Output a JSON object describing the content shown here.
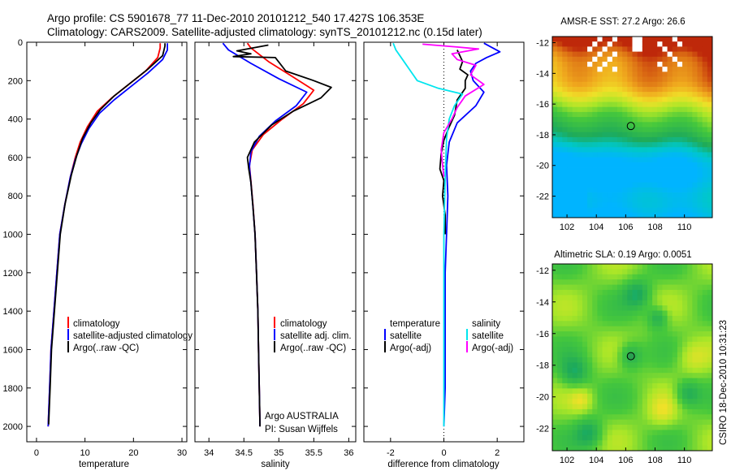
{
  "header": {
    "title_line1": "Argo profile: CS 5901678_77 11-Dec-2010 20101212_540 17.427S 106.353E",
    "title_line2": "Climatology: CARS2009. Satellite-adjusted climatology: synTS_20101212.nc (0.15d later)"
  },
  "stamp": "CSIRO 18-Dec-2010 10:31:23",
  "colors": {
    "climatology": "#ff0000",
    "satellite": "#0000ff",
    "argo": "#000000",
    "sal_satellite": "#00e5ee",
    "sal_argo": "#ff00ff"
  },
  "chart_data": [
    {
      "type": "line",
      "panel": "temperature",
      "xlabel": "temperature",
      "xlim": [
        -2,
        31
      ],
      "ylim": [
        0,
        2080
      ],
      "y_inverted": true,
      "xticks": [
        "0",
        "10",
        "20",
        "30"
      ],
      "yticks": [
        "0",
        "200",
        "400",
        "600",
        "800",
        "1000",
        "1200",
        "1400",
        "1600",
        "1800",
        "2000"
      ],
      "legend": [
        "climatology",
        "satellite-adjusted climatology",
        "Argo(..raw -QC)"
      ],
      "series": [
        {
          "name": "climatology",
          "color": "#ff0000",
          "points": [
            [
              25.5,
              5
            ],
            [
              25.5,
              30
            ],
            [
              25.0,
              80
            ],
            [
              22.5,
              150
            ],
            [
              19.0,
              220
            ],
            [
              15.5,
              290
            ],
            [
              12.5,
              360
            ],
            [
              10.5,
              440
            ],
            [
              9.0,
              520
            ],
            [
              8.0,
              600
            ],
            [
              7.0,
              700
            ],
            [
              5.8,
              850
            ],
            [
              4.8,
              1000
            ],
            [
              4.2,
              1200
            ],
            [
              3.6,
              1400
            ],
            [
              3.0,
              1600
            ],
            [
              2.7,
              1800
            ],
            [
              2.4,
              2000
            ]
          ]
        },
        {
          "name": "satellite-adjusted climatology",
          "color": "#0000ff",
          "points": [
            [
              27.0,
              5
            ],
            [
              27.0,
              40
            ],
            [
              26.0,
              90
            ],
            [
              23.0,
              160
            ],
            [
              19.5,
              230
            ],
            [
              16.0,
              300
            ],
            [
              13.0,
              370
            ],
            [
              10.8,
              450
            ],
            [
              9.2,
              530
            ],
            [
              8.0,
              610
            ],
            [
              7.0,
              700
            ],
            [
              5.8,
              850
            ],
            [
              4.8,
              1000
            ],
            [
              4.2,
              1200
            ],
            [
              3.6,
              1400
            ],
            [
              3.0,
              1600
            ],
            [
              2.7,
              1800
            ],
            [
              2.4,
              2000
            ]
          ]
        },
        {
          "name": "Argo(..raw -QC)",
          "color": "#000000",
          "points": [
            [
              26.5,
              5
            ],
            [
              26.5,
              20
            ],
            [
              26.0,
              70
            ],
            [
              23.0,
              140
            ],
            [
              19.5,
              210
            ],
            [
              16.0,
              280
            ],
            [
              13.2,
              350
            ],
            [
              11.2,
              420
            ],
            [
              9.5,
              500
            ],
            [
              8.3,
              590
            ],
            [
              7.2,
              690
            ],
            [
              5.9,
              840
            ],
            [
              4.9,
              1000
            ],
            [
              4.3,
              1200
            ],
            [
              3.7,
              1400
            ],
            [
              3.1,
              1600
            ],
            [
              2.8,
              1800
            ],
            [
              2.5,
              1990
            ]
          ]
        }
      ]
    },
    {
      "type": "line",
      "panel": "salinity",
      "xlabel": "salinity",
      "xlim": [
        33.8,
        36.1
      ],
      "ylim": [
        0,
        2080
      ],
      "y_inverted": true,
      "xticks": [
        "34",
        "34.5",
        "35",
        "35.5",
        "36"
      ],
      "legend": [
        "climatology",
        "satellite adj. clim.",
        "Argo(..raw -QC)"
      ],
      "annotation": [
        "Argo AUSTRALIA",
        "PI: Susan Wijffels"
      ],
      "series": [
        {
          "name": "climatology",
          "color": "#ff0000",
          "points": [
            [
              34.55,
              5
            ],
            [
              34.6,
              30
            ],
            [
              34.85,
              100
            ],
            [
              35.2,
              180
            ],
            [
              35.5,
              250
            ],
            [
              35.35,
              320
            ],
            [
              35.05,
              400
            ],
            [
              34.78,
              480
            ],
            [
              34.62,
              560
            ],
            [
              34.58,
              640
            ],
            [
              34.6,
              720
            ],
            [
              34.63,
              850
            ],
            [
              34.66,
              1000
            ],
            [
              34.68,
              1200
            ],
            [
              34.7,
              1400
            ],
            [
              34.71,
              1600
            ],
            [
              34.72,
              1800
            ],
            [
              34.73,
              2000
            ]
          ]
        },
        {
          "name": "satellite adj. clim.",
          "color": "#0000ff",
          "points": [
            [
              34.2,
              5
            ],
            [
              34.28,
              40
            ],
            [
              34.6,
              110
            ],
            [
              35.0,
              190
            ],
            [
              35.4,
              260
            ],
            [
              35.25,
              330
            ],
            [
              34.95,
              410
            ],
            [
              34.72,
              490
            ],
            [
              34.6,
              570
            ],
            [
              34.58,
              650
            ],
            [
              34.6,
              730
            ],
            [
              34.63,
              860
            ],
            [
              34.66,
              1000
            ],
            [
              34.68,
              1200
            ],
            [
              34.7,
              1400
            ],
            [
              34.71,
              1600
            ],
            [
              34.72,
              1800
            ],
            [
              34.73,
              2000
            ]
          ]
        },
        {
          "name": "Argo(..raw -QC)",
          "color": "#000000",
          "points": [
            [
              34.85,
              15
            ],
            [
              34.4,
              45
            ],
            [
              34.6,
              60
            ],
            [
              34.35,
              75
            ],
            [
              34.95,
              80
            ],
            [
              35.1,
              150
            ],
            [
              35.5,
              200
            ],
            [
              35.75,
              235
            ],
            [
              35.6,
              290
            ],
            [
              35.2,
              360
            ],
            [
              34.9,
              430
            ],
            [
              34.65,
              520
            ],
            [
              34.55,
              600
            ],
            [
              34.57,
              660
            ],
            [
              34.6,
              730
            ],
            [
              34.63,
              860
            ],
            [
              34.66,
              1000
            ],
            [
              34.68,
              1200
            ],
            [
              34.7,
              1400
            ],
            [
              34.71,
              1600
            ],
            [
              34.72,
              1800
            ],
            [
              34.73,
              2000
            ]
          ]
        }
      ]
    },
    {
      "type": "line",
      "panel": "difference",
      "xlabel": "difference from climatology",
      "xlim": [
        -3,
        3
      ],
      "ylim": [
        0,
        2080
      ],
      "y_inverted": true,
      "xticks": [
        "-2",
        "0",
        "2"
      ],
      "legend": [
        "temperature",
        "satellite",
        "Argo(-adj)",
        "salinity",
        "satellite",
        "Argo(-adj)"
      ],
      "series": [
        {
          "name": "satellite",
          "color": "#0000ff",
          "points": [
            [
              1.5,
              5
            ],
            [
              2.1,
              50
            ],
            [
              1.6,
              80
            ],
            [
              1.2,
              110
            ],
            [
              1.0,
              150
            ],
            [
              1.1,
              200
            ],
            [
              1.5,
              260
            ],
            [
              1.2,
              330
            ],
            [
              0.5,
              420
            ],
            [
              0.2,
              520
            ],
            [
              0.1,
              640
            ],
            [
              0.15,
              800
            ],
            [
              0.1,
              1000
            ],
            [
              0.05,
              1200
            ],
            [
              0.05,
              1500
            ],
            [
              0.05,
              1800
            ],
            [
              0.0,
              2000
            ]
          ]
        },
        {
          "name": "Argo(-adj)",
          "color": "#000000",
          "points": [
            [
              0.5,
              40
            ],
            [
              0.6,
              70
            ],
            [
              0.7,
              100
            ],
            [
              0.6,
              140
            ],
            [
              0.9,
              170
            ],
            [
              0.8,
              200
            ],
            [
              0.8,
              240
            ],
            [
              0.5,
              300
            ],
            [
              0.4,
              380
            ],
            [
              0.2,
              440
            ],
            [
              0.0,
              510
            ],
            [
              -0.1,
              580
            ],
            [
              -0.15,
              660
            ],
            [
              0.0,
              720
            ],
            [
              -0.05,
              800
            ],
            [
              0.05,
              900
            ],
            [
              0.05,
              1000
            ]
          ]
        },
        {
          "name": "satellite",
          "color": "#00e5ee",
          "points": [
            [
              -1.9,
              5
            ],
            [
              -1.8,
              40
            ],
            [
              -1.5,
              100
            ],
            [
              -1.0,
              200
            ],
            [
              -0.2,
              240
            ],
            [
              0.7,
              270
            ],
            [
              0.4,
              330
            ],
            [
              0.2,
              400
            ],
            [
              0.1,
              500
            ],
            [
              0.05,
              700
            ],
            [
              0.0,
              1000
            ],
            [
              0.0,
              1500
            ],
            [
              0.0,
              2000
            ]
          ]
        },
        {
          "name": "Argo(-adj)",
          "color": "#ff00ff",
          "points": [
            [
              -0.8,
              10
            ],
            [
              0.5,
              25
            ],
            [
              1.3,
              35
            ],
            [
              0.3,
              60
            ],
            [
              0.5,
              90
            ],
            [
              1.2,
              120
            ],
            [
              1.0,
              170
            ],
            [
              1.5,
              220
            ],
            [
              0.8,
              280
            ],
            [
              0.5,
              340
            ],
            [
              0.3,
              400
            ],
            [
              0.0,
              470
            ],
            [
              -0.1,
              560
            ],
            [
              -0.05,
              640
            ],
            [
              0.0,
              700
            ]
          ]
        }
      ]
    },
    {
      "type": "heatmap",
      "panel": "sst_map",
      "title": "AMSR-E SST: 27.2 Argo: 26.6",
      "xlim": [
        101,
        111.9
      ],
      "ylim": [
        -23.4,
        -11.6
      ],
      "xticks": [
        "102",
        "104",
        "106",
        "108",
        "110"
      ],
      "yticks": [
        "-12",
        "-14",
        "-16",
        "-18",
        "-20",
        "-22"
      ],
      "marker": [
        106.35,
        -17.43
      ]
    },
    {
      "type": "heatmap",
      "panel": "sla_map",
      "title": "Altimetric SLA: 0.19 Argo: 0.0051",
      "xlim": [
        101,
        111.9
      ],
      "ylim": [
        -23.4,
        -11.6
      ],
      "xticks": [
        "102",
        "104",
        "106",
        "108",
        "110"
      ],
      "yticks": [
        "-12",
        "-14",
        "-16",
        "-18",
        "-20",
        "-22"
      ],
      "marker": [
        106.35,
        -17.43
      ]
    }
  ]
}
